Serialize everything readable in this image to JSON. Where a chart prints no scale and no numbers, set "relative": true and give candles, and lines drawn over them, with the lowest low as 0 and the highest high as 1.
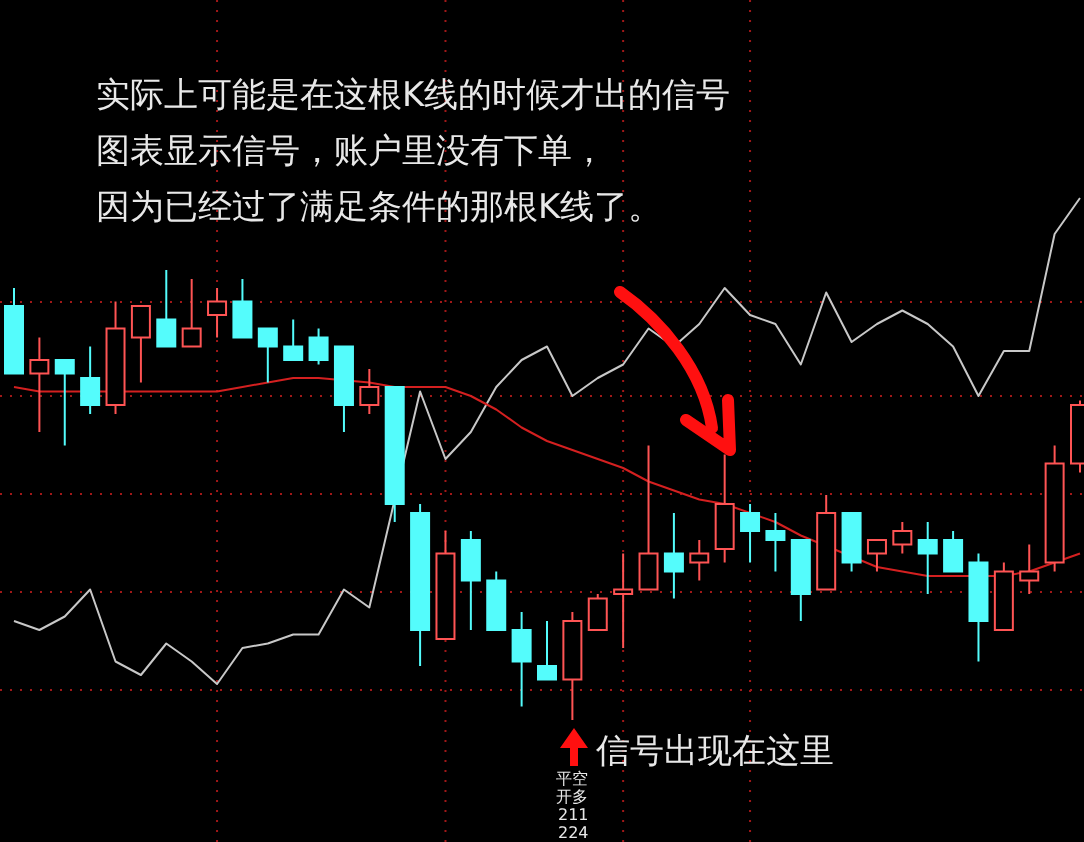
{
  "chart_data": {
    "type": "candlestick",
    "relative": true,
    "grid": true,
    "categories": [
      null,
      null,
      null,
      null,
      null,
      null,
      null,
      null,
      null,
      null,
      null,
      null,
      null,
      null,
      null,
      null,
      null,
      null,
      null,
      null,
      null,
      null,
      null,
      null,
      null,
      null,
      null,
      null,
      null,
      null,
      null,
      null,
      null,
      null,
      null,
      null,
      null,
      null,
      null,
      null,
      null,
      null,
      null
    ],
    "ohlc": [
      [
        0.92,
        0.96,
        0.77,
        0.77
      ],
      [
        0.77,
        0.85,
        0.64,
        0.8
      ],
      [
        0.8,
        0.8,
        0.61,
        0.77
      ],
      [
        0.76,
        0.83,
        0.68,
        0.7
      ],
      [
        0.7,
        0.93,
        0.68,
        0.87
      ],
      [
        0.85,
        0.92,
        0.75,
        0.92
      ],
      [
        0.89,
        1,
        0.83,
        0.83
      ],
      [
        0.83,
        0.98,
        0.83,
        0.87
      ],
      [
        0.9,
        0.96,
        0.85,
        0.93
      ],
      [
        0.93,
        0.98,
        0.85,
        0.85
      ],
      [
        0.87,
        0.87,
        0.75,
        0.83
      ],
      [
        0.83,
        0.89,
        0.8,
        0.8
      ],
      [
        0.85,
        0.87,
        0.79,
        0.8
      ],
      [
        0.83,
        0.83,
        0.64,
        0.7
      ],
      [
        0.7,
        0.78,
        0.68,
        0.74
      ],
      [
        0.74,
        0.74,
        0.44,
        0.48
      ],
      [
        0.46,
        0.48,
        0.12,
        0.2
      ],
      [
        0.18,
        0.42,
        0.18,
        0.37
      ],
      [
        0.4,
        0.42,
        0.2,
        0.31
      ],
      [
        0.31,
        0.33,
        0.2,
        0.2
      ],
      [
        0.2,
        0.24,
        0.03,
        0.13
      ],
      [
        0.12,
        0.22,
        0.09,
        0.09
      ],
      [
        0.09,
        0.24,
        0,
        0.22
      ],
      [
        0.2,
        0.28,
        0.2,
        0.27
      ],
      [
        0.28,
        0.37,
        0.16,
        0.29
      ],
      [
        0.29,
        0.61,
        0.29,
        0.37
      ],
      [
        0.37,
        0.46,
        0.27,
        0.33
      ],
      [
        0.35,
        0.4,
        0.31,
        0.37
      ],
      [
        0.38,
        0.59,
        0.35,
        0.48
      ],
      [
        0.46,
        0.48,
        0.35,
        0.42
      ],
      [
        0.42,
        0.46,
        0.33,
        0.4
      ],
      [
        0.4,
        0.4,
        0.22,
        0.28
      ],
      [
        0.29,
        0.5,
        0.29,
        0.46
      ],
      [
        0.46,
        0.46,
        0.33,
        0.35
      ],
      [
        0.37,
        0.4,
        0.33,
        0.4
      ],
      [
        0.39,
        0.44,
        0.37,
        0.42
      ],
      [
        0.4,
        0.44,
        0.28,
        0.37
      ],
      [
        0.4,
        0.42,
        0.33,
        0.33
      ],
      [
        0.35,
        0.37,
        0.13,
        0.22
      ],
      [
        0.2,
        0.35,
        0.2,
        0.33
      ],
      [
        0.31,
        0.39,
        0.28,
        0.33
      ],
      [
        0.35,
        0.61,
        0.33,
        0.57
      ],
      [
        0.57,
        0.71,
        0.55,
        0.7
      ]
    ],
    "colors": [
      "#54fcfc",
      "#ff5454",
      "#54fcfc",
      "#54fcfc",
      "#ff5454",
      "#ff5454",
      "#54fcfc",
      "#ff5454",
      "#ff5454",
      "#54fcfc",
      "#54fcfc",
      "#54fcfc",
      "#54fcfc",
      "#54fcfc",
      "#ff5454",
      "#54fcfc",
      "#54fcfc",
      "#ff5454",
      "#54fcfc",
      "#54fcfc",
      "#54fcfc",
      "#54fcfc",
      "#ff5454",
      "#ff5454",
      "#ff5454",
      "#ff5454",
      "#54fcfc",
      "#ff5454",
      "#ff5454",
      "#54fcfc",
      "#54fcfc",
      "#54fcfc",
      "#ff5454",
      "#54fcfc",
      "#ff5454",
      "#ff5454",
      "#54fcfc",
      "#54fcfc",
      "#54fcfc",
      "#ff5454",
      "#ff5454",
      "#ff5454",
      "#ff5454"
    ],
    "series": [
      {
        "type": "line",
        "color": "#c8c8c8",
        "values": [
          0.22,
          0.2,
          0.23,
          0.29,
          0.13,
          0.1,
          0.17,
          0.13,
          0.08,
          0.16,
          0.17,
          0.19,
          0.19,
          0.29,
          0.25,
          0.49,
          0.73,
          0.58,
          0.64,
          0.74,
          0.8,
          0.83,
          0.72,
          0.76,
          0.79,
          0.87,
          0.83,
          0.88,
          0.96,
          0.9,
          0.88,
          0.79,
          0.95,
          0.84,
          0.88,
          0.91,
          0.88,
          0.83,
          0.72,
          0.82,
          0.82,
          1.08,
          1.16
        ]
      },
      {
        "type": "line",
        "color": "#d42020",
        "values": [
          0.74,
          0.73,
          0.73,
          null,
          null,
          0.73,
          0.73,
          0.73,
          0.73,
          0.74,
          0.75,
          0.76,
          0.76,
          null,
          0.75,
          0.74,
          0.74,
          0.74,
          0.72,
          0.69,
          0.65,
          0.62,
          0.6,
          0.58,
          0.56,
          0.53,
          0.51,
          0.49,
          0.48,
          0.46,
          0.44,
          0.41,
          null,
          null,
          0.34,
          0.33,
          0.32,
          0.32,
          null,
          0.32,
          0.33,
          0.35,
          0.37
        ]
      }
    ],
    "annotations": [
      "实际上可能是在这根K线的时候才出的信号",
      "图表显示信号，账户里没有下单，",
      "因为已经过了满足条件的那根K线了。",
      "信号出现在这里",
      "平空",
      "开多",
      "211",
      "224"
    ]
  }
}
